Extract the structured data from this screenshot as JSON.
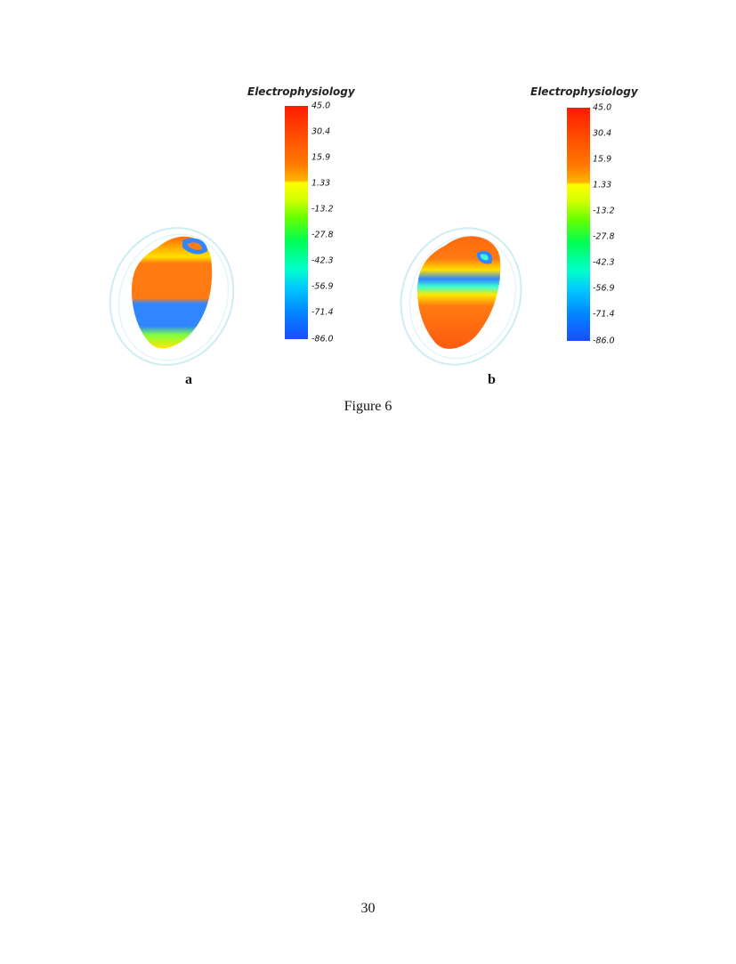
{
  "figure": {
    "caption": "Figure 6",
    "panels": [
      {
        "label": "a",
        "legend_title": "Electrophysiology",
        "colorbar_ticks": [
          "45.0",
          "30.4",
          "15.9",
          "1.33",
          "-13.2",
          "-27.8",
          "-42.3",
          "-56.9",
          "-71.4",
          "-86.0"
        ]
      },
      {
        "label": "b",
        "legend_title": "Electrophysiology",
        "colorbar_ticks": [
          "45.0",
          "30.4",
          "15.9",
          "1.33",
          "-13.2",
          "-27.8",
          "-42.3",
          "-56.9",
          "-71.4",
          "-86.0"
        ]
      }
    ],
    "colormap": [
      "#ff1a00",
      "#ff7a00",
      "#ffff00",
      "#66ff00",
      "#00ffcc",
      "#0088ff",
      "#1a4dff"
    ]
  },
  "page": {
    "number": "30"
  }
}
